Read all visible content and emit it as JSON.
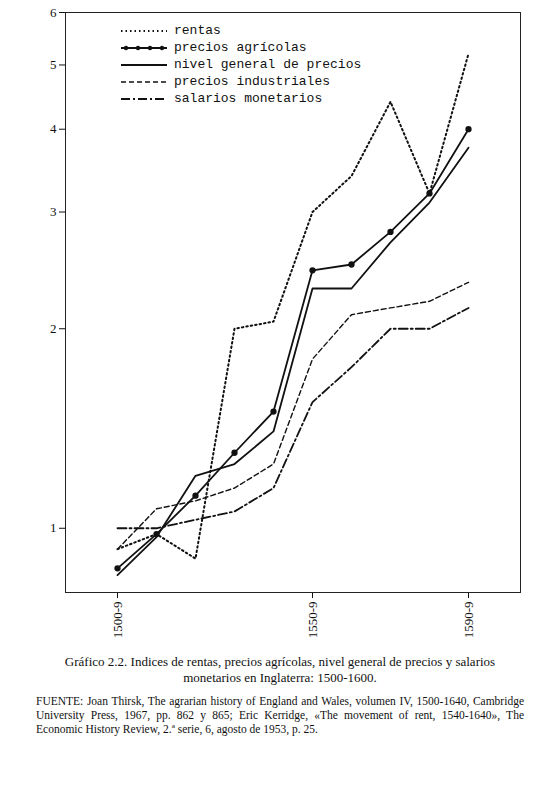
{
  "chart_data": {
    "type": "line",
    "title": "Gráfico 2.2. Indices de rentas, precios agrícolas, nivel general de precios y salarios monetarios en Inglaterra: 1500-1600.",
    "caption": "FUENTE: Joan Thirsk, The agrarian history of England and Wales, volumen IV, 1500-1640, Cambridge University Press, 1967, pp. 862 y 865; Eric Kerridge, «The movement of rent, 1540-1640», The Economic History Review, 2.ª serie, 6, agosto de 1953, p. 25.",
    "categories": [
      "1500-9",
      null,
      null,
      null,
      null,
      "1550-9",
      null,
      null,
      null,
      "1590-9"
    ],
    "series": [
      {
        "name": "rentas",
        "color": "#111111",
        "line_style": "dotted",
        "values": [
          0.93,
          0.98,
          0.9,
          2.0,
          2.05,
          3.0,
          3.4,
          4.4,
          3.2,
          5.2
        ]
      },
      {
        "name": "precios agrícolas",
        "color": "#111111",
        "line_style": "solid",
        "marker": "circle",
        "values": [
          0.87,
          0.98,
          1.12,
          1.3,
          1.5,
          2.45,
          2.5,
          2.8,
          3.2,
          4.0
        ]
      },
      {
        "name": "nivel general de precios",
        "color": "#111111",
        "line_style": "solid",
        "values": [
          0.85,
          0.97,
          1.2,
          1.25,
          1.4,
          2.3,
          2.3,
          2.7,
          3.1,
          3.75
        ]
      },
      {
        "name": "precios industriales",
        "color": "#111111",
        "line_style": "dashed",
        "values": [
          0.93,
          1.07,
          1.1,
          1.15,
          1.25,
          1.8,
          2.1,
          2.15,
          2.2,
          2.35
        ]
      },
      {
        "name": "salarios monetarios",
        "color": "#111111",
        "line_style": "dashdot",
        "values": [
          1.0,
          1.0,
          1.03,
          1.06,
          1.15,
          1.55,
          1.75,
          2.0,
          2.0,
          2.15
        ]
      }
    ],
    "log": "y",
    "ylim": [
      0.8,
      6
    ],
    "yticks": [
      1,
      2,
      3,
      4,
      5,
      6
    ],
    "grid": false,
    "legend": "top-left"
  }
}
